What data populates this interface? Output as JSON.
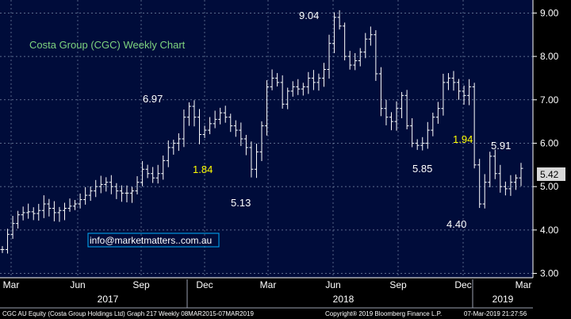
{
  "chart_data": {
    "type": "line",
    "style": "ohlc-bars",
    "title": "Costa Group (CGC) Weekly Chart",
    "ylim": [
      2.9,
      9.3
    ],
    "yticks": [
      3.0,
      4.0,
      5.0,
      6.0,
      7.0,
      8.0,
      9.0
    ],
    "ytick_labels": [
      "3.00",
      "4.00",
      "5.00",
      "6.00",
      "7.00",
      "8.00",
      "9.00"
    ],
    "month_labels": [
      "Mar",
      "Jun",
      "Sep",
      "Dec",
      "Mar",
      "Jun",
      "Sep",
      "Dec",
      "Mar"
    ],
    "year_labels": [
      "2017",
      "2018",
      "2019"
    ],
    "last_price": "5.42",
    "annotations": [
      {
        "text": "9.04",
        "color": "#ffffff"
      },
      {
        "text": "6.97",
        "color": "#ffffff"
      },
      {
        "text": "1.84",
        "color": "#ffff00"
      },
      {
        "text": "5.13",
        "color": "#ffffff"
      },
      {
        "text": "5.85",
        "color": "#ffffff"
      },
      {
        "text": "1.94",
        "color": "#ffff00"
      },
      {
        "text": "5.91",
        "color": "#ffffff"
      },
      {
        "text": "4.40",
        "color": "#ffffff"
      }
    ],
    "series": [
      {
        "values": [
          3.55,
          3.9,
          4.15,
          4.35,
          4.4,
          4.42,
          4.38,
          4.45,
          4.6,
          4.5,
          4.4,
          4.45,
          4.5,
          4.55,
          4.6,
          4.7,
          4.8,
          4.9,
          5.0,
          5.05,
          5.1,
          5.0,
          4.9,
          4.85,
          4.85,
          4.9,
          5.1,
          5.4,
          5.3,
          5.2,
          5.3,
          5.6,
          5.9,
          6.0,
          6.1,
          6.6,
          6.85,
          6.6,
          6.2,
          6.3,
          6.45,
          6.55,
          6.7,
          6.6,
          6.4,
          6.3,
          6.1,
          5.9,
          5.4,
          5.8,
          6.4,
          7.3,
          7.5,
          7.4,
          6.9,
          7.2,
          7.3,
          7.25,
          7.3,
          7.5,
          7.4,
          7.5,
          7.7,
          8.3,
          8.9,
          8.7,
          8.0,
          7.8,
          7.9,
          8.1,
          8.4,
          8.5,
          7.6,
          6.8,
          6.6,
          6.5,
          6.8,
          7.1,
          6.4,
          6.0,
          5.95,
          6.0,
          6.3,
          6.6,
          6.8,
          7.4,
          7.5,
          7.4,
          7.2,
          7.1,
          7.3,
          5.5,
          4.6,
          5.1,
          5.7,
          5.3,
          5.0,
          4.95,
          5.1,
          5.2,
          5.42
        ]
      }
    ]
  },
  "watermark": "info@marketmatters..com.au",
  "footer": {
    "left": "CGC AU Equity (Costa Group Holdings Ltd) Graph 217  Weekly 08MAR2015-07MAR2019",
    "center": "Copyright® 2019 Bloomberg Finance L.P.",
    "right": "07-Mar-2019 21:27:56"
  },
  "colors": {
    "background": "#000000",
    "plot_background": "#000c3a",
    "grid": "#7a8aa8",
    "bars": "#ffffff",
    "title": "#7fd37f",
    "highlight": "#ffff00",
    "watermark_border": "#00b0ff"
  }
}
